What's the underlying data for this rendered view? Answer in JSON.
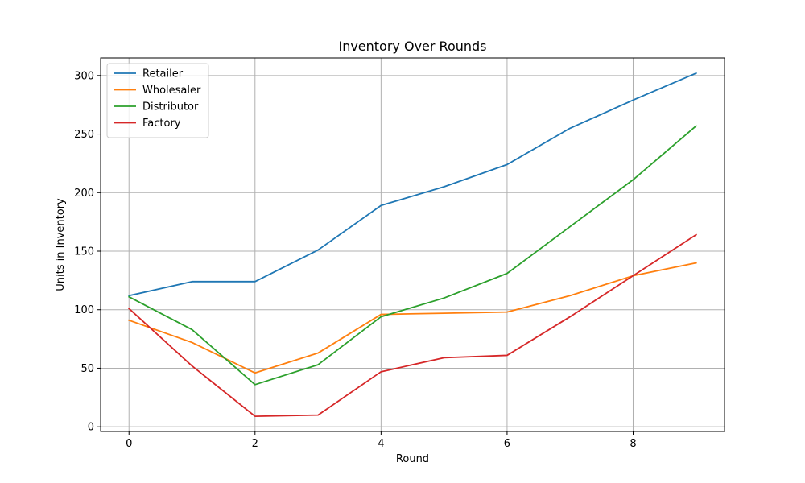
{
  "chart_data": {
    "type": "line",
    "title": "Inventory Over Rounds",
    "xlabel": "Round",
    "ylabel": "Units in Inventory",
    "xlim": [
      -0.45,
      9.45
    ],
    "ylim": [
      -4,
      315
    ],
    "xticks": [
      0,
      2,
      4,
      6,
      8
    ],
    "yticks": [
      0,
      50,
      100,
      150,
      200,
      250,
      300
    ],
    "grid": true,
    "legend_position": "top-left",
    "x": [
      0,
      1,
      2,
      3,
      4,
      5,
      6,
      7,
      8,
      9
    ],
    "series": [
      {
        "name": "Retailer",
        "color": "#1f77b4",
        "values": [
          112,
          124,
          124,
          151,
          189,
          205,
          224,
          255,
          279,
          302
        ]
      },
      {
        "name": "Wholesaler",
        "color": "#ff7f0e",
        "values": [
          91,
          72,
          46,
          63,
          96,
          97,
          98,
          112,
          129,
          140
        ]
      },
      {
        "name": "Distributor",
        "color": "#2ca02c",
        "values": [
          111,
          83,
          36,
          53,
          94,
          110,
          131,
          171,
          211,
          257
        ]
      },
      {
        "name": "Factory",
        "color": "#d62728",
        "values": [
          101,
          52,
          9,
          10,
          47,
          59,
          61,
          94,
          129,
          164
        ]
      }
    ]
  }
}
